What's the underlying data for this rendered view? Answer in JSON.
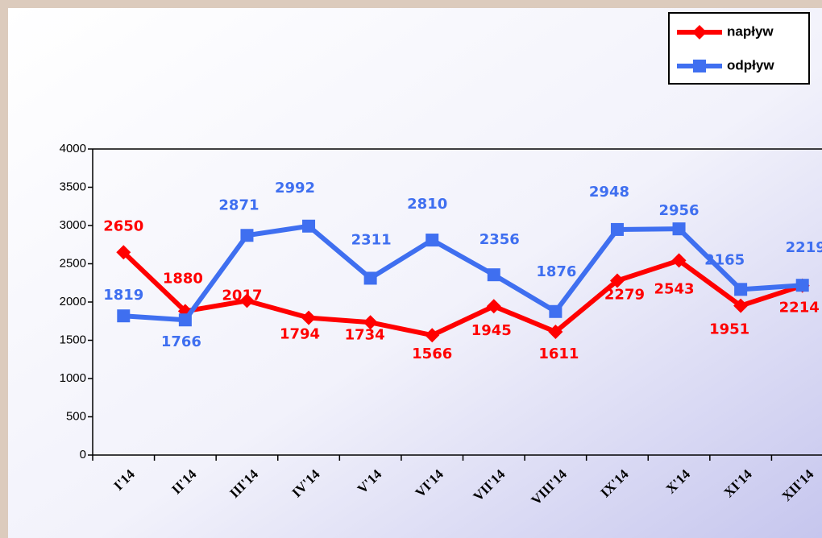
{
  "chart_data": {
    "type": "line",
    "categories": [
      "I'14",
      "II'14",
      "III'14",
      "IV'14",
      "V'14",
      "VI'14",
      "VII'14",
      "VIII'14",
      "IX'14",
      "X'14",
      "XI'14",
      "XII'14"
    ],
    "series": [
      {
        "name": "napływ",
        "color": "#ff0000",
        "marker": "diamond",
        "values": [
          2650,
          1880,
          2017,
          1794,
          1734,
          1566,
          1945,
          1611,
          2279,
          2543,
          1951,
          2214
        ]
      },
      {
        "name": "odpływ",
        "color": "#3f6ff0",
        "marker": "square",
        "values": [
          1819,
          1766,
          2871,
          2992,
          2311,
          2810,
          2356,
          1876,
          2948,
          2956,
          2165,
          2219
        ]
      }
    ],
    "ylim": [
      0,
      4000
    ],
    "yticks": [
      0,
      500,
      1000,
      1500,
      2000,
      2500,
      3000,
      3500,
      4000
    ],
    "legend": "top-right"
  }
}
